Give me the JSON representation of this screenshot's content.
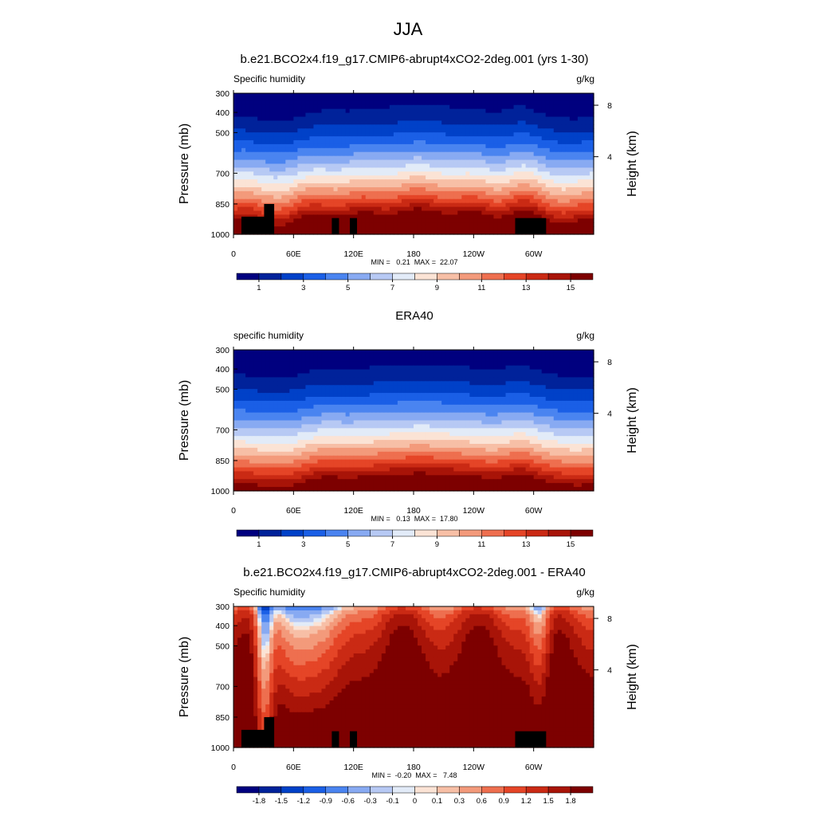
{
  "figure": {
    "main_title": "JJA"
  },
  "colors": {
    "full": [
      "#00007f",
      "#00229a",
      "#0041c8",
      "#1a5fe6",
      "#4a84f0",
      "#88aaf2",
      "#b7c9f4",
      "#e2ebf8",
      "#fbe3d5",
      "#f7bfa6",
      "#f39a7b",
      "#ee6f4f",
      "#e54527",
      "#ca2a14",
      "#a81408",
      "#7d0000"
    ],
    "diff": [
      "#00007f",
      "#00229a",
      "#0041c8",
      "#1a5fe6",
      "#4a84f0",
      "#88aaf2",
      "#b7c9f4",
      "#e2ebf8",
      "#fbe3d5",
      "#f7bfa6",
      "#f39a7b",
      "#ee6f4f",
      "#e54527",
      "#ca2a14",
      "#a81408",
      "#7d0000"
    ]
  },
  "chart_data": [
    {
      "type": "heatmap",
      "title": "b.e21.BCO2x4.f19_g17.CMIP6-abrupt4xCO2-2deg.001 (yrs 1-30)",
      "left_string": "Specific humidity",
      "right_string": "g/kg",
      "xlabel": "",
      "ylabel": "Pressure (mb)",
      "y2label": "Height (km)",
      "x_ticks": [
        "0",
        "60E",
        "120E",
        "180",
        "120W",
        "60W"
      ],
      "y_ticks": [
        "300",
        "400",
        "500",
        "700",
        "850",
        "1000"
      ],
      "y2_ticks": [
        "8",
        "4"
      ],
      "minmax_text": "MIN =   0.21  MAX =  22.07",
      "min": 0.21,
      "max": 22.07,
      "colorbar_labels": [
        "1",
        "3",
        "5",
        "7",
        "9",
        "11",
        "13",
        "15"
      ],
      "colorbar_levels": [
        0,
        1,
        2,
        3,
        4,
        5,
        6,
        7,
        8,
        9,
        10,
        11,
        12,
        13,
        14,
        15
      ]
    },
    {
      "type": "heatmap",
      "title": "ERA40",
      "left_string": "specific humidity",
      "right_string": "g/kg",
      "xlabel": "",
      "ylabel": "Pressure (mb)",
      "y2label": "Height (km)",
      "x_ticks": [
        "0",
        "60E",
        "120E",
        "180",
        "120W",
        "60W"
      ],
      "y_ticks": [
        "300",
        "400",
        "500",
        "700",
        "850",
        "1000"
      ],
      "y2_ticks": [
        "8",
        "4"
      ],
      "minmax_text": "MIN =   0.13  MAX =  17.80",
      "min": 0.13,
      "max": 17.8,
      "colorbar_labels": [
        "1",
        "3",
        "5",
        "7",
        "9",
        "11",
        "13",
        "15"
      ],
      "colorbar_levels": [
        0,
        1,
        2,
        3,
        4,
        5,
        6,
        7,
        8,
        9,
        10,
        11,
        12,
        13,
        14,
        15
      ]
    },
    {
      "type": "heatmap",
      "title": "b.e21.BCO2x4.f19_g17.CMIP6-abrupt4xCO2-2deg.001 - ERA40",
      "left_string": "Specific humidity",
      "right_string": "g/kg",
      "xlabel": "",
      "ylabel": "Pressure (mb)",
      "y2label": "Height (km)",
      "x_ticks": [
        "0",
        "60E",
        "120E",
        "180",
        "120W",
        "60W"
      ],
      "y_ticks": [
        "300",
        "400",
        "500",
        "700",
        "850",
        "1000"
      ],
      "y2_ticks": [
        "8",
        "4"
      ],
      "minmax_text": "MIN =  -0.20  MAX =   7.48",
      "min": -0.2,
      "max": 7.48,
      "colorbar_labels": [
        "-1.8",
        "-1.5",
        "-1.2",
        "-0.9",
        "-0.6",
        "-0.3",
        "-0.1",
        "0",
        "0.1",
        "0.3",
        "0.6",
        "0.9",
        "1.2",
        "1.5",
        "1.8"
      ],
      "colorbar_levels": [
        -2.1,
        -1.8,
        -1.5,
        -1.2,
        -0.9,
        -0.6,
        -0.3,
        -0.1,
        0,
        0.1,
        0.3,
        0.6,
        0.9,
        1.2,
        1.5,
        1.8
      ]
    }
  ]
}
